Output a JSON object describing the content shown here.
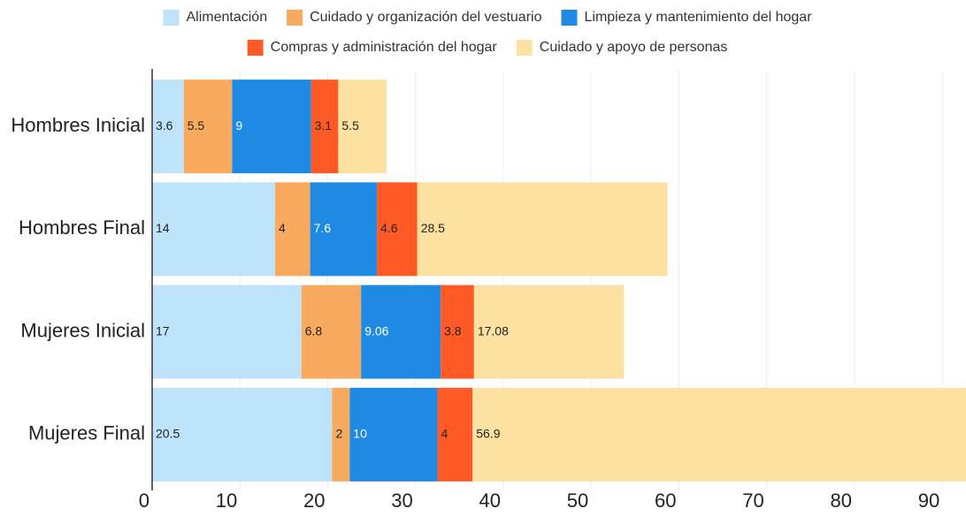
{
  "chart_data": {
    "type": "stacked_barh",
    "categories": [
      "Hombres Inicial",
      "Hombres Final",
      "Mujeres Inicial",
      "Mujeres Final"
    ],
    "series": [
      {
        "name": "Alimentación",
        "color": "#bfe3fa",
        "label_color": "#222",
        "values": [
          3.6,
          14,
          17,
          20.5
        ]
      },
      {
        "name": "Cuidado y organización del vestuario",
        "color": "#f9aa5e",
        "label_color": "#222",
        "values": [
          5.5,
          4,
          6.8,
          2
        ]
      },
      {
        "name": "Limpieza y mantenimiento del hogar",
        "color": "#1e8ae3",
        "label_color": "#ffffff",
        "values": [
          9,
          7.6,
          9.06,
          10
        ]
      },
      {
        "name": "Compras y administración del hogar",
        "color": "#ff5a26",
        "label_color": "#222",
        "values": [
          3.1,
          4.6,
          3.8,
          4
        ]
      },
      {
        "name": "Cuidado y apoyo de personas",
        "color": "#fde1a0",
        "label_color": "#222",
        "values": [
          5.5,
          28.5,
          17.08,
          56.9
        ]
      }
    ],
    "xlim": [
      0,
      92.7
    ],
    "xticks": [
      0,
      10,
      20,
      30,
      40,
      50,
      60,
      70,
      80,
      90
    ],
    "grid": true,
    "legend": "top"
  }
}
